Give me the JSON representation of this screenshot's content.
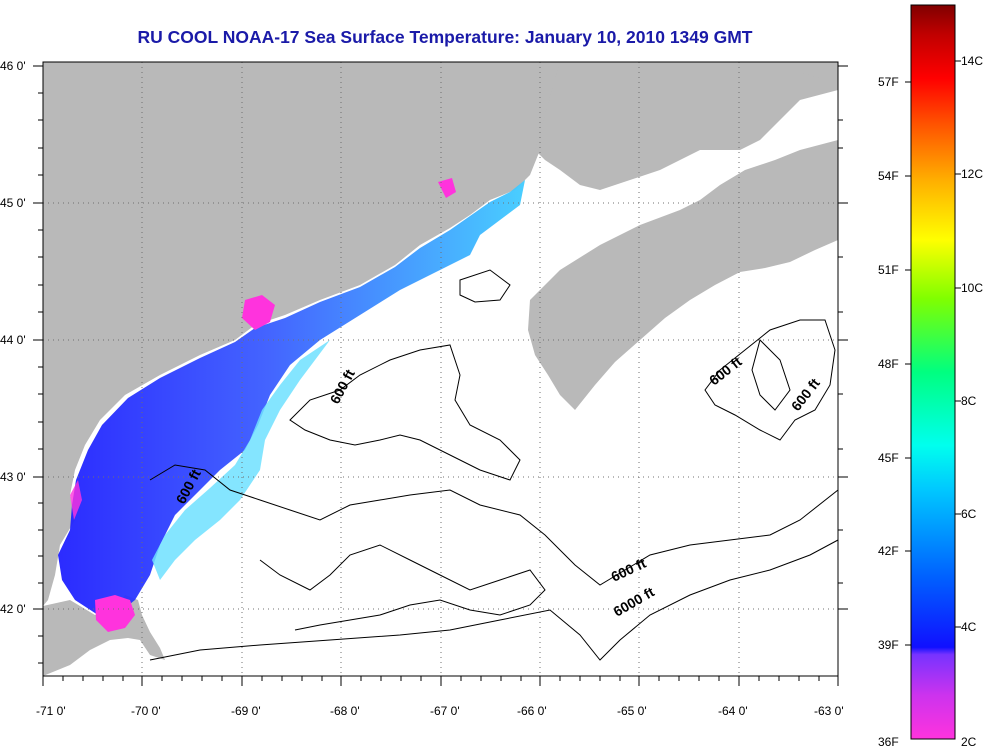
{
  "title": "RU COOL  NOAA-17  Sea Surface Temperature:  January 10, 2010 1349 GMT",
  "map": {
    "lon_range": [
      -71,
      -63
    ],
    "lat_range": [
      41.5,
      46
    ],
    "lon_ticks": [
      "-71 0'",
      "-70 0'",
      "-69 0'",
      "-68 0'",
      "-67 0'",
      "-66 0'",
      "-65 0'",
      "-64 0'",
      "-63 0'"
    ],
    "lat_ticks": [
      "46 0'",
      "45 0'",
      "44 0'",
      "43 0'",
      "42 0'"
    ],
    "grid": true,
    "contour_labels": [
      "600 ft",
      "600 ft",
      "600 ft",
      "600 ft",
      "600 ft",
      "6000 ft"
    ],
    "colors": {
      "land": "#b9b9b9",
      "water": "#ffffff",
      "contour": "#000000",
      "grid": "#808080",
      "title": "#1a1aa8"
    }
  },
  "colorbar": {
    "fahrenheit_labels": [
      "57F",
      "54F",
      "51F",
      "48F",
      "45F",
      "42F",
      "39F",
      "36F"
    ],
    "celsius_labels": [
      "14C",
      "12C",
      "10C",
      "8C",
      "6C",
      "4C",
      "2C"
    ],
    "range_c": [
      2,
      15
    ],
    "stops": [
      "#ff33dd",
      "#9933ff",
      "#2020ff",
      "#00a0ff",
      "#00ffff",
      "#00ff80",
      "#80ff00",
      "#ffff00",
      "#ffa000",
      "#ff3000",
      "#d00000",
      "#800000"
    ]
  }
}
